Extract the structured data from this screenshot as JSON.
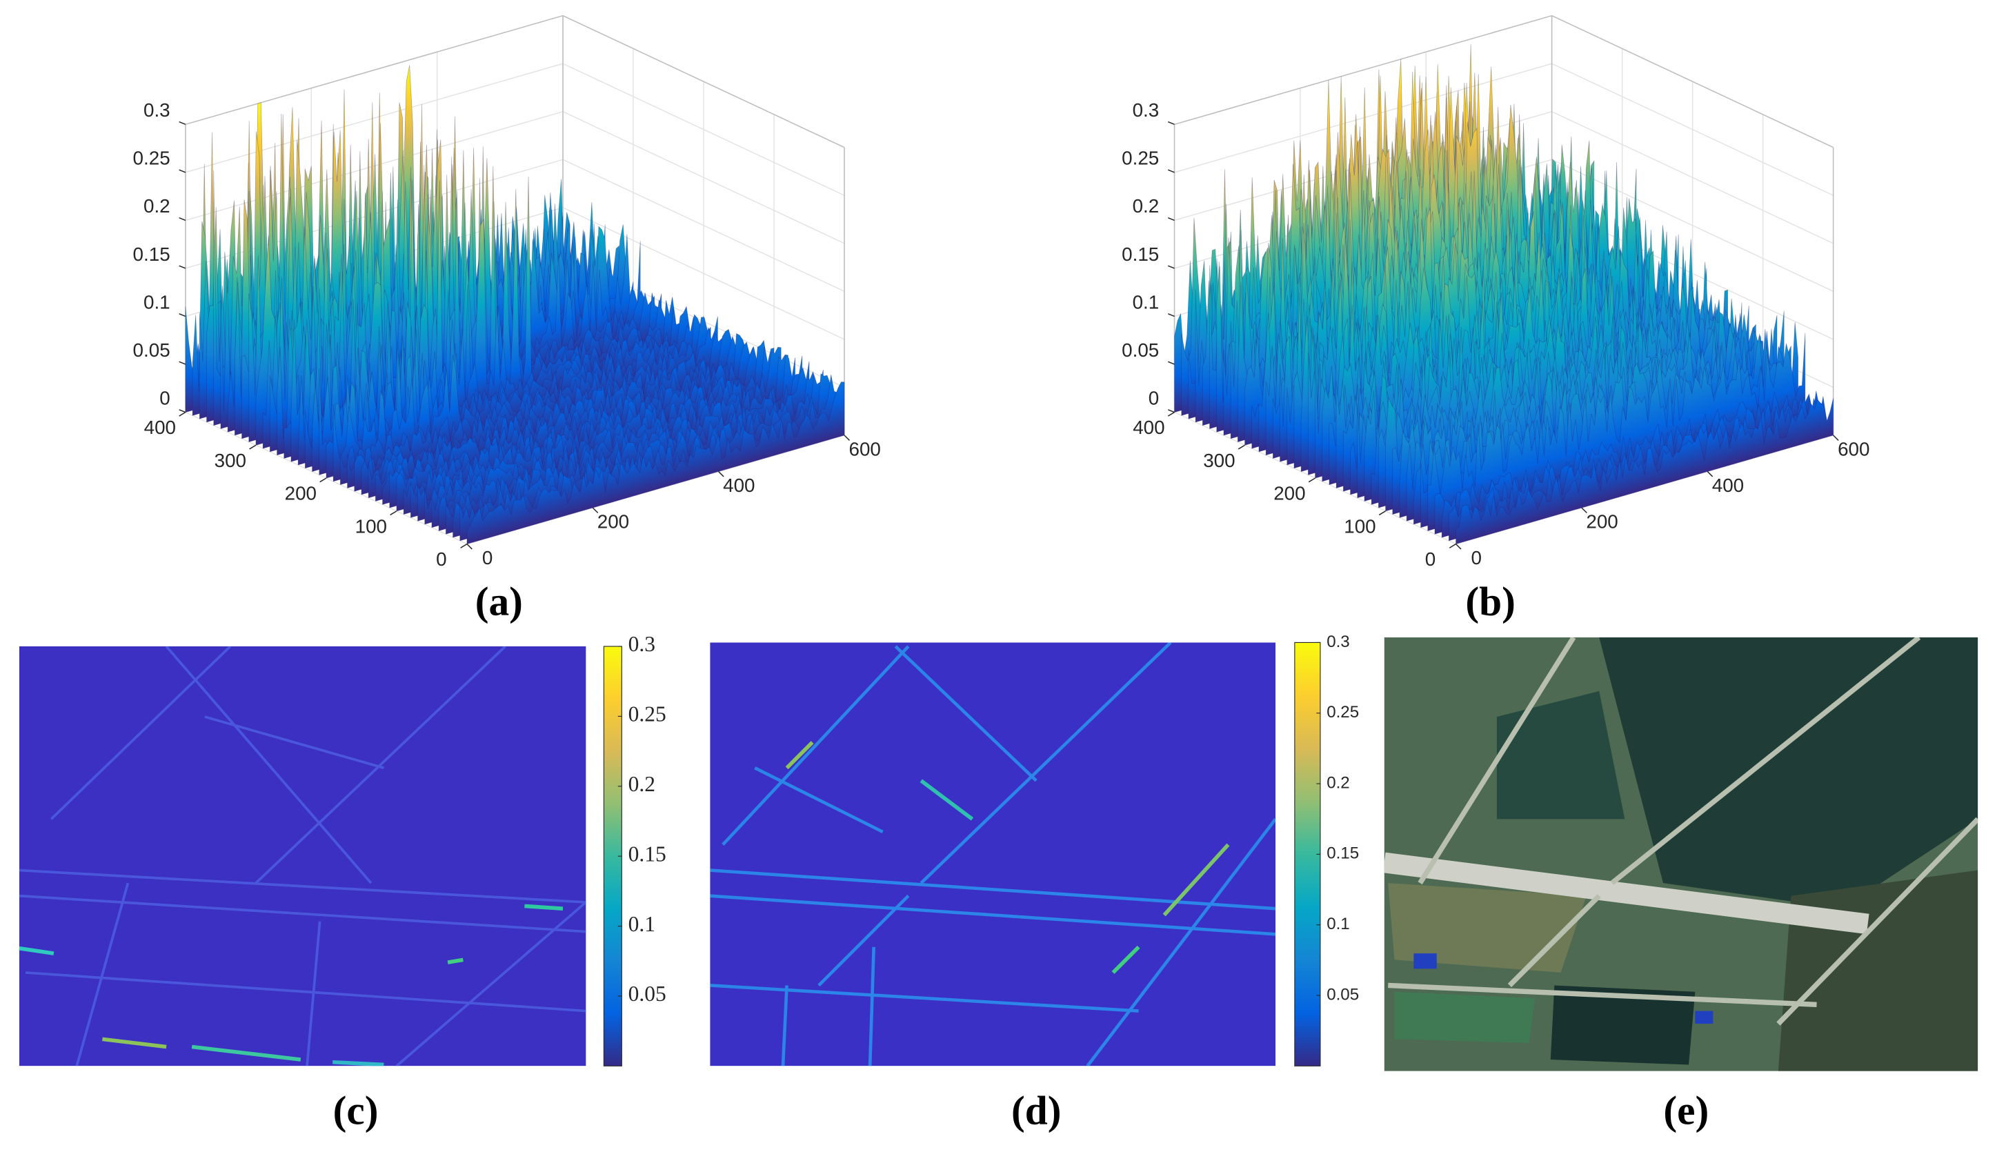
{
  "chart_data": [
    {
      "type": "surface",
      "panel_label": "(a)",
      "xlim": [
        0,
        600
      ],
      "xticks": [
        0,
        200,
        400,
        600
      ],
      "ylim": [
        0,
        400
      ],
      "yticks": [
        0,
        100,
        200,
        300,
        400
      ],
      "zlim": [
        0,
        0.3
      ],
      "zticks": [
        0,
        0.05,
        0.1,
        0.15,
        0.2,
        0.25,
        0.3
      ],
      "colormap": "parula",
      "grid": true
    },
    {
      "type": "surface",
      "panel_label": "(b)",
      "xlim": [
        0,
        600
      ],
      "xticks": [
        0,
        200,
        400,
        600
      ],
      "ylim": [
        0,
        400
      ],
      "yticks": [
        0,
        100,
        200,
        300,
        400
      ],
      "zlim": [
        0,
        0.3
      ],
      "zticks": [
        0,
        0.05,
        0.1,
        0.15,
        0.2,
        0.25,
        0.3
      ],
      "colormap": "parula",
      "grid": true
    },
    {
      "type": "heatmap",
      "panel_label": "(c)",
      "clim": [
        0,
        0.3
      ],
      "cticks": [
        0.05,
        0.1,
        0.15,
        0.2,
        0.25,
        0.3
      ],
      "colormap": "parula"
    },
    {
      "type": "heatmap",
      "panel_label": "(d)",
      "clim": [
        0,
        0.3
      ],
      "cticks": [
        0.05,
        0.1,
        0.15,
        0.2,
        0.25,
        0.3
      ],
      "colormap": "parula"
    },
    {
      "type": "image",
      "panel_label": "(e)"
    }
  ]
}
